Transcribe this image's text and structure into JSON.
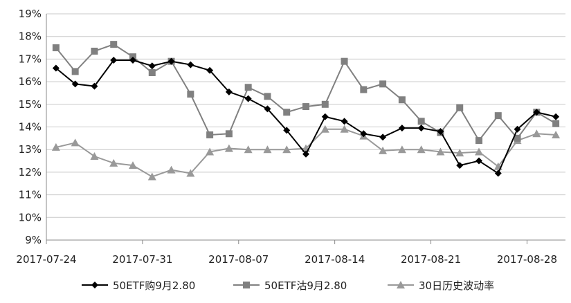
{
  "chart_data": {
    "type": "line",
    "title": "",
    "xlabel": "",
    "ylabel": "",
    "ylim": [
      9,
      19
    ],
    "y_unit": "%",
    "y_ticks": [
      9,
      10,
      11,
      12,
      13,
      14,
      15,
      16,
      17,
      18,
      19
    ],
    "y_tick_labels": [
      "9%",
      "10%",
      "11%",
      "12%",
      "13%",
      "14%",
      "15%",
      "16%",
      "17%",
      "18%",
      "19%"
    ],
    "x_tick_labels": [
      "2017-07-24",
      "2017-07-31",
      "2017-08-07",
      "2017-08-14",
      "2017-08-21",
      "2017-08-28"
    ],
    "grid": "horizontal",
    "legend_position": "bottom",
    "x": [
      "2017-07-24",
      "2017-07-25",
      "2017-07-26",
      "2017-07-27",
      "2017-07-28",
      "2017-07-31",
      "2017-08-01",
      "2017-08-02",
      "2017-08-03",
      "2017-08-04",
      "2017-08-07",
      "2017-08-08",
      "2017-08-09",
      "2017-08-10",
      "2017-08-11",
      "2017-08-14",
      "2017-08-15",
      "2017-08-16",
      "2017-08-17",
      "2017-08-18",
      "2017-08-21",
      "2017-08-22",
      "2017-08-23",
      "2017-08-24",
      "2017-08-25",
      "2017-08-28",
      "2017-08-29"
    ],
    "series": [
      {
        "name": "50ETF购9月2.80",
        "color": "#000000",
        "marker": "diamond",
        "values": [
          16.6,
          15.9,
          15.8,
          16.95,
          16.95,
          16.7,
          16.9,
          16.75,
          16.5,
          15.55,
          15.25,
          14.8,
          13.85,
          12.8,
          14.45,
          14.25,
          13.7,
          13.55,
          13.95,
          13.95,
          13.8,
          12.3,
          12.5,
          11.95,
          13.9,
          14.65,
          14.45
        ]
      },
      {
        "name": "50ETF沽9月2.80",
        "color": "#808080",
        "marker": "square",
        "values": [
          17.5,
          16.45,
          17.35,
          17.65,
          17.1,
          16.4,
          16.9,
          15.45,
          13.65,
          13.7,
          15.75,
          15.35,
          14.65,
          14.9,
          15.0,
          16.9,
          15.65,
          15.9,
          15.2,
          14.25,
          13.75,
          14.85,
          13.4,
          14.5,
          13.5,
          14.65,
          14.15
        ]
      },
      {
        "name": "30日历史波动率",
        "color": "#999999",
        "marker": "triangle",
        "values": [
          13.1,
          13.3,
          12.7,
          12.4,
          12.3,
          11.8,
          12.1,
          11.95,
          12.9,
          13.05,
          13.0,
          13.0,
          13.0,
          13.05,
          13.9,
          13.9,
          13.6,
          12.95,
          13.0,
          13.0,
          12.9,
          12.85,
          12.9,
          12.25,
          13.4,
          13.7,
          13.65
        ]
      }
    ]
  }
}
